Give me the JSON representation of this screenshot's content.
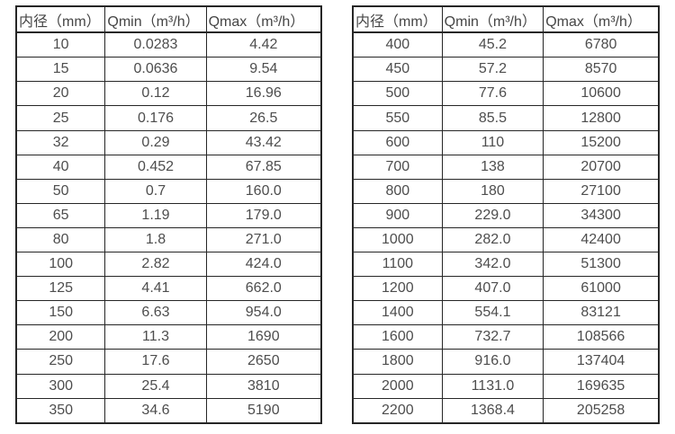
{
  "colors": {
    "background": "#ffffff",
    "border": "#262626",
    "text": "#4d4d4d"
  },
  "tables": {
    "left": {
      "name": "flow-table-left",
      "headers": [
        "内径（mm）",
        "Qmin（m³/h）",
        "Qmax（m³/h）"
      ],
      "rows": [
        [
          "10",
          "0.0283",
          "4.42"
        ],
        [
          "15",
          "0.0636",
          "9.54"
        ],
        [
          "20",
          "0.12",
          "16.96"
        ],
        [
          "25",
          "0.176",
          "26.5"
        ],
        [
          "32",
          "0.29",
          "43.42"
        ],
        [
          "40",
          "0.452",
          "67.85"
        ],
        [
          "50",
          "0.7",
          "160.0"
        ],
        [
          "65",
          "1.19",
          "179.0"
        ],
        [
          "80",
          "1.8",
          "271.0"
        ],
        [
          "100",
          "2.82",
          "424.0"
        ],
        [
          "125",
          "4.41",
          "662.0"
        ],
        [
          "150",
          "6.63",
          "954.0"
        ],
        [
          "200",
          "11.3",
          "1690"
        ],
        [
          "250",
          "17.6",
          "2650"
        ],
        [
          "300",
          "25.4",
          "3810"
        ],
        [
          "350",
          "34.6",
          "5190"
        ]
      ]
    },
    "right": {
      "name": "flow-table-right",
      "headers": [
        "内径（mm）",
        "Qmin（m³/h）",
        "Qmax（m³/h）"
      ],
      "rows": [
        [
          "400",
          "45.2",
          "6780"
        ],
        [
          "450",
          "57.2",
          "8570"
        ],
        [
          "500",
          "77.6",
          "10600"
        ],
        [
          "550",
          "85.5",
          "12800"
        ],
        [
          "600",
          "110",
          "15200"
        ],
        [
          "700",
          "138",
          "20700"
        ],
        [
          "800",
          "180",
          "27100"
        ],
        [
          "900",
          "229.0",
          "34300"
        ],
        [
          "1000",
          "282.0",
          "42400"
        ],
        [
          "1100",
          "342.0",
          "51300"
        ],
        [
          "1200",
          "407.0",
          "61000"
        ],
        [
          "1400",
          "554.1",
          "83121"
        ],
        [
          "1600",
          "732.7",
          "108566"
        ],
        [
          "1800",
          "916.0",
          "137404"
        ],
        [
          "2000",
          "1131.0",
          "169635"
        ],
        [
          "2200",
          "1368.4",
          "205258"
        ]
      ]
    }
  }
}
